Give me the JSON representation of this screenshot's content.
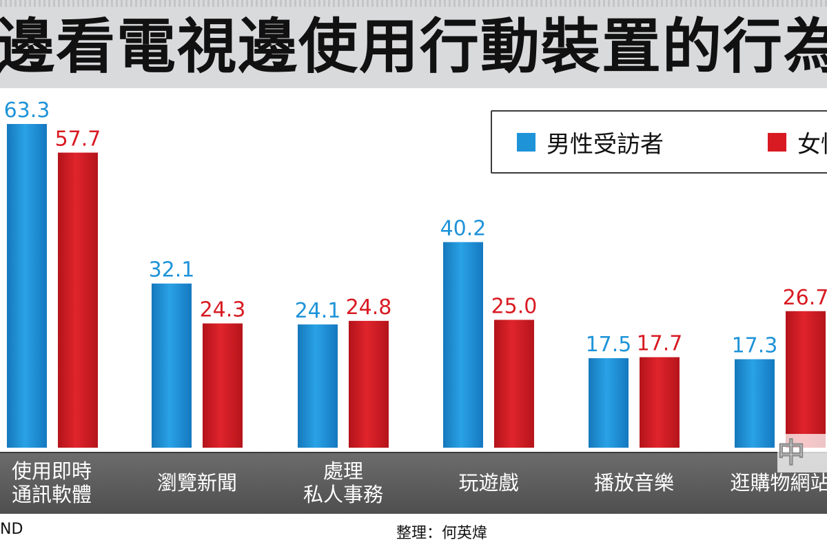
{
  "colors": {
    "male": "#1e93d8",
    "female": "#d81a22",
    "category_strip": "#5a5a5a",
    "title_bg": "#d9dadc"
  },
  "chart_data": {
    "type": "bar",
    "title": "族邊看電視邊使用行動裝置的行為比",
    "categories": [
      "使用即時\n通訊軟體",
      "瀏覽新聞",
      "處理\n私人事務",
      "玩遊戲",
      "播放音樂",
      "逛購物網站"
    ],
    "series": [
      {
        "name": "男性受訪者",
        "color": "#1e93d8",
        "values": [
          63.3,
          32.1,
          24.1,
          40.2,
          17.5,
          17.3
        ]
      },
      {
        "name": "女性受訪者",
        "color": "#d81a22",
        "values": [
          57.7,
          24.3,
          24.8,
          25.0,
          17.7,
          26.7
        ]
      }
    ],
    "value_labels": [
      [
        "63.3",
        "32.1",
        "24.1",
        "40.2",
        "17.5",
        "17.3"
      ],
      [
        "57.7",
        "24.3",
        "24.8",
        "25.0",
        "17.7",
        "26.7"
      ]
    ],
    "ylim": [
      0,
      70
    ],
    "xlabel": "",
    "ylabel": "",
    "grid": false,
    "legend_position": "top-right"
  },
  "footer": {
    "source": "ND",
    "credit": "整理：何英煒"
  },
  "watermark": {
    "text": "中時"
  }
}
